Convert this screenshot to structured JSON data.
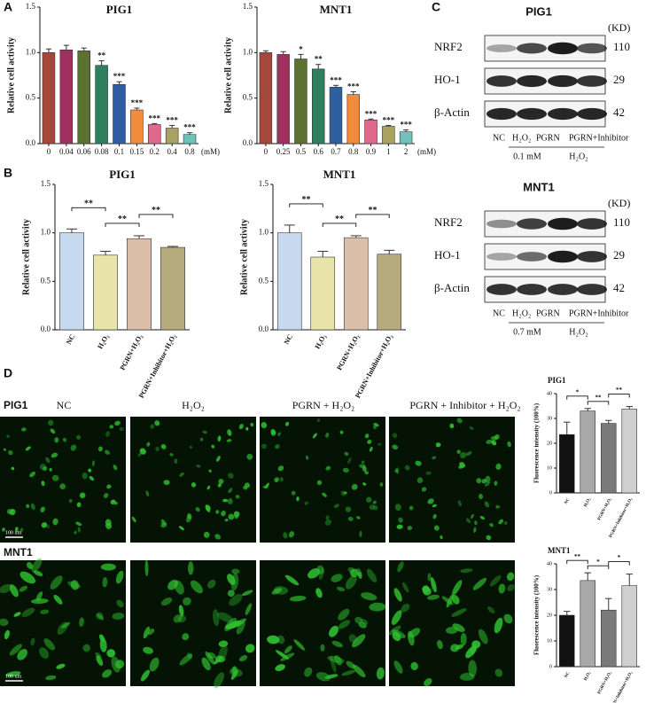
{
  "panels": [
    "A",
    "B",
    "C",
    "D"
  ],
  "chart_data": [
    {
      "type": "bar",
      "title": "PIG1",
      "y_label": "Relative cell activity",
      "x_unit": "(mM)",
      "categories": [
        "0",
        "0.04",
        "0.06",
        "0.08",
        "0.1",
        "0.15",
        "0.2",
        "0.4",
        "0.8"
      ],
      "values": [
        1.0,
        1.03,
        1.02,
        0.86,
        0.65,
        0.37,
        0.21,
        0.17,
        0.1
      ],
      "errors": [
        0.04,
        0.05,
        0.03,
        0.05,
        0.03,
        0.02,
        0.01,
        0.03,
        0.02
      ],
      "colors": [
        "#a5483b",
        "#9e3160",
        "#5c7232",
        "#2f7e5c",
        "#2f5f9e",
        "#f28c3c",
        "#e06a8c",
        "#a9a265",
        "#6ec2b9"
      ],
      "significance": [
        null,
        null,
        null,
        "**",
        "***",
        "***",
        "***",
        "***",
        "***"
      ],
      "ylim": [
        0,
        1.5
      ],
      "yticks": [
        {
          "value": 0,
          "label": "0.0"
        },
        0.5,
        {
          "value": 1,
          "label": "1.0"
        },
        1.5
      ]
    },
    {
      "type": "bar",
      "title": "MNT1",
      "y_label": "Relative cell activity",
      "x_unit": "(mM)",
      "categories": [
        "0",
        "0.25",
        "0.5",
        "0.6",
        "0.7",
        "0.8",
        "0.9",
        "1",
        "2"
      ],
      "values": [
        1.0,
        0.98,
        0.93,
        0.82,
        0.62,
        0.54,
        0.26,
        0.19,
        0.13
      ],
      "errors": [
        0.02,
        0.03,
        0.05,
        0.05,
        0.02,
        0.03,
        0.01,
        0.01,
        0.02
      ],
      "colors": [
        "#a5483b",
        "#9e3160",
        "#5c7232",
        "#2f7e5c",
        "#2f5f9e",
        "#f28c3c",
        "#e06a8c",
        "#a9a265",
        "#6ec2b9"
      ],
      "significance": [
        null,
        null,
        "*",
        "**",
        "***",
        "***",
        "***",
        "***",
        "***"
      ],
      "ylim": [
        0,
        1.5
      ],
      "yticks": [
        {
          "value": 0,
          "label": "0.0"
        },
        0.5,
        {
          "value": 1,
          "label": "1.0"
        },
        1.5
      ]
    },
    {
      "type": "bar",
      "title": "PIG1",
      "y_label": "Relative cell activity",
      "categories": [
        "NC",
        "H₂O₂",
        "PGRN+H₂O₂",
        "PGRN+Inhibitor+H₂O₂"
      ],
      "values": [
        1.0,
        0.77,
        0.94,
        0.85
      ],
      "errors": [
        0.04,
        0.04,
        0.03,
        0.01
      ],
      "colors": [
        "#c6d9ef",
        "#e9e4a9",
        "#dcbfa9",
        "#b5ab7d"
      ],
      "comparisons": [
        {
          "between": [
            "NC",
            "H₂O₂"
          ],
          "label": "**"
        },
        {
          "between": [
            "H₂O₂",
            "PGRN+H₂O₂"
          ],
          "label": "**"
        },
        {
          "between": [
            "PGRN+H₂O₂",
            "PGRN+Inhibitor+H₂O₂"
          ],
          "label": "**"
        }
      ],
      "ylim": [
        0,
        1.5
      ],
      "yticks": [
        {
          "value": 0,
          "label": "0.0"
        },
        0.5,
        {
          "value": 1,
          "label": "1.0"
        },
        1.5
      ]
    },
    {
      "type": "bar",
      "title": "MNT1",
      "y_label": "Relative cell activity",
      "categories": [
        "NC",
        "H₂O₂",
        "PGRN+H₂O₂",
        "PGRN+Inhibitor+H₂O₂"
      ],
      "values": [
        1.0,
        0.75,
        0.95,
        0.78
      ],
      "errors": [
        0.08,
        0.06,
        0.02,
        0.04
      ],
      "colors": [
        "#c6d9ef",
        "#e9e4a9",
        "#dcbfa9",
        "#b5ab7d"
      ],
      "comparisons": [
        {
          "between": [
            "NC",
            "H₂O₂"
          ],
          "label": "**"
        },
        {
          "between": [
            "H₂O₂",
            "PGRN+H₂O₂"
          ],
          "label": "**"
        },
        {
          "between": [
            "PGRN+H₂O₂",
            "PGRN+Inhibitor+H₂O₂"
          ],
          "label": "**"
        }
      ],
      "ylim": [
        0,
        1.5
      ],
      "yticks": [
        {
          "value": 0,
          "label": "0.0"
        },
        0.5,
        {
          "value": 1,
          "label": "1.0"
        },
        1.5
      ]
    },
    {
      "type": "bar",
      "title": "PIG1",
      "y_label": "Fluorescence intensity (100%)",
      "categories": [
        "NC",
        "H₂O₂",
        "PGRN+H₂O₂",
        "PGRN+Inhibitor+H₂O₂"
      ],
      "values": [
        23.5,
        33,
        28,
        33.8
      ],
      "errors": [
        5,
        1,
        1.2,
        1
      ],
      "colors": [
        "#111111",
        "#a8a8a8",
        "#7a7a7a",
        "#cfcfcf"
      ],
      "comparisons": [
        {
          "between": [
            "NC",
            "H₂O₂"
          ],
          "label": "*"
        },
        {
          "between": [
            "H₂O₂",
            "PGRN+H₂O₂"
          ],
          "label": "**"
        },
        {
          "between": [
            "PGRN+H₂O₂",
            "PGRN+Inhibitor+H₂O₂"
          ],
          "label": "**"
        }
      ],
      "ylim": [
        0,
        40
      ],
      "yticks": [
        0,
        10,
        20,
        30,
        40
      ]
    },
    {
      "type": "bar",
      "title": "MNT1",
      "y_label": "Fluorescence intensity (100%)",
      "categories": [
        "NC",
        "H₂O₂",
        "PGRN+H₂O₂",
        "PGRN+Inhibitor+H₂O₂"
      ],
      "values": [
        20,
        33.5,
        22,
        31.5
      ],
      "errors": [
        1.5,
        3,
        4.5,
        4.5
      ],
      "colors": [
        "#111111",
        "#a8a8a8",
        "#7a7a7a",
        "#cfcfcf"
      ],
      "comparisons": [
        {
          "between": [
            "NC",
            "H₂O₂"
          ],
          "label": "**"
        },
        {
          "between": [
            "H₂O₂",
            "PGRN+H₂O₂"
          ],
          "label": "*"
        },
        {
          "between": [
            "PGRN+H₂O₂",
            "PGRN+Inhibitor+H₂O₂"
          ],
          "label": "*"
        }
      ],
      "ylim": [
        0,
        40
      ],
      "yticks": [
        0,
        10,
        20,
        30,
        40
      ]
    }
  ],
  "western_blots": [
    {
      "title": "PIG1",
      "unit": "(KD)",
      "rows": [
        {
          "label": "NRF2",
          "kd": 110
        },
        {
          "label": "HO-1",
          "kd": 29
        },
        {
          "label": "β-Actin",
          "kd": 42
        }
      ],
      "lanes": [
        "NC",
        "H₂O₂",
        "PGRN",
        "PGRN+Inhibitor"
      ],
      "concentration": "0.1 mM",
      "treatment": "H₂O₂"
    },
    {
      "title": "MNT1",
      "unit": "(KD)",
      "rows": [
        {
          "label": "NRF2",
          "kd": 110
        },
        {
          "label": "HO-1",
          "kd": 29
        },
        {
          "label": "β-Actin",
          "kd": 42
        }
      ],
      "lanes": [
        "NC",
        "H₂O₂",
        "PGRN",
        "PGRN+Inhibitor"
      ],
      "concentration": "0.7 mM",
      "treatment": "H₂O₂"
    }
  ],
  "micrographs": {
    "columns": [
      "NC",
      "H₂O₂",
      "PGRN + H₂O₂",
      "PGRN + Inhibitor + H₂O₂"
    ],
    "rows": [
      "PIG1",
      "MNT1"
    ],
    "scale_bar": "100 um"
  }
}
